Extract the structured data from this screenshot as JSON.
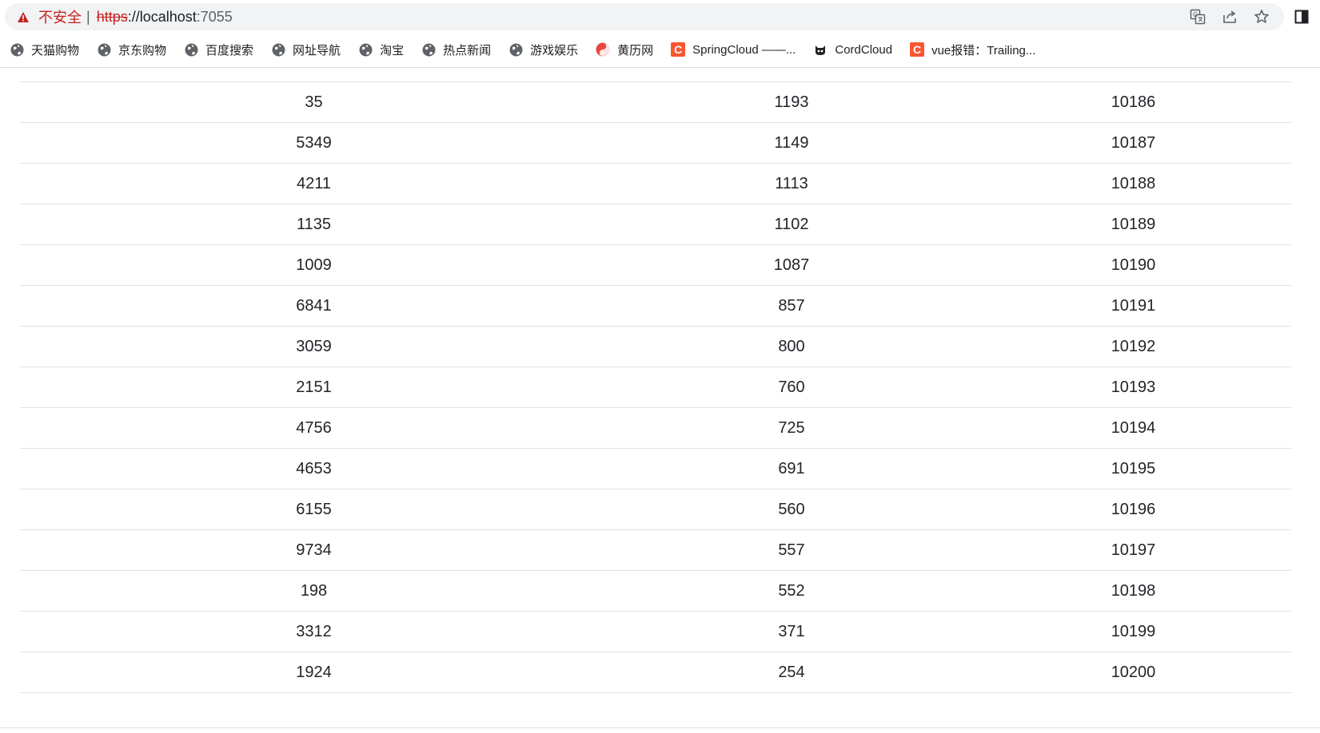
{
  "browser": {
    "security_label": "不安全",
    "url_scheme": "https",
    "url_rest": "://localhost",
    "url_port": ":7055",
    "bookmarks": [
      {
        "label": "天猫购物",
        "icon": "globe-icon"
      },
      {
        "label": "京东购物",
        "icon": "globe-icon"
      },
      {
        "label": "百度搜索",
        "icon": "globe-icon"
      },
      {
        "label": "网址导航",
        "icon": "globe-icon"
      },
      {
        "label": "淘宝",
        "icon": "globe-icon"
      },
      {
        "label": "热点新闻",
        "icon": "globe-icon"
      },
      {
        "label": "游戏娱乐",
        "icon": "globe-icon"
      },
      {
        "label": "黄历网",
        "icon": "yinyang-icon"
      },
      {
        "label": "SpringCloud ——...",
        "icon": "csdn-icon"
      },
      {
        "label": "CordCloud",
        "icon": "cat-icon"
      },
      {
        "label": "vue报错：Trailing...",
        "icon": "csdn-icon"
      }
    ],
    "csdn_glyph": "C"
  },
  "colors": {
    "warning_red": "#c5221f",
    "csdn_orange": "#fc5531",
    "border": "#dee2e6"
  },
  "table": {
    "rows": [
      [
        "35",
        "1193",
        "10186"
      ],
      [
        "5349",
        "1149",
        "10187"
      ],
      [
        "4211",
        "1113",
        "10188"
      ],
      [
        "1135",
        "1102",
        "10189"
      ],
      [
        "1009",
        "1087",
        "10190"
      ],
      [
        "6841",
        "857",
        "10191"
      ],
      [
        "3059",
        "800",
        "10192"
      ],
      [
        "2151",
        "760",
        "10193"
      ],
      [
        "4756",
        "725",
        "10194"
      ],
      [
        "4653",
        "691",
        "10195"
      ],
      [
        "6155",
        "560",
        "10196"
      ],
      [
        "9734",
        "557",
        "10197"
      ],
      [
        "198",
        "552",
        "10198"
      ],
      [
        "3312",
        "371",
        "10199"
      ],
      [
        "1924",
        "254",
        "10200"
      ]
    ]
  }
}
